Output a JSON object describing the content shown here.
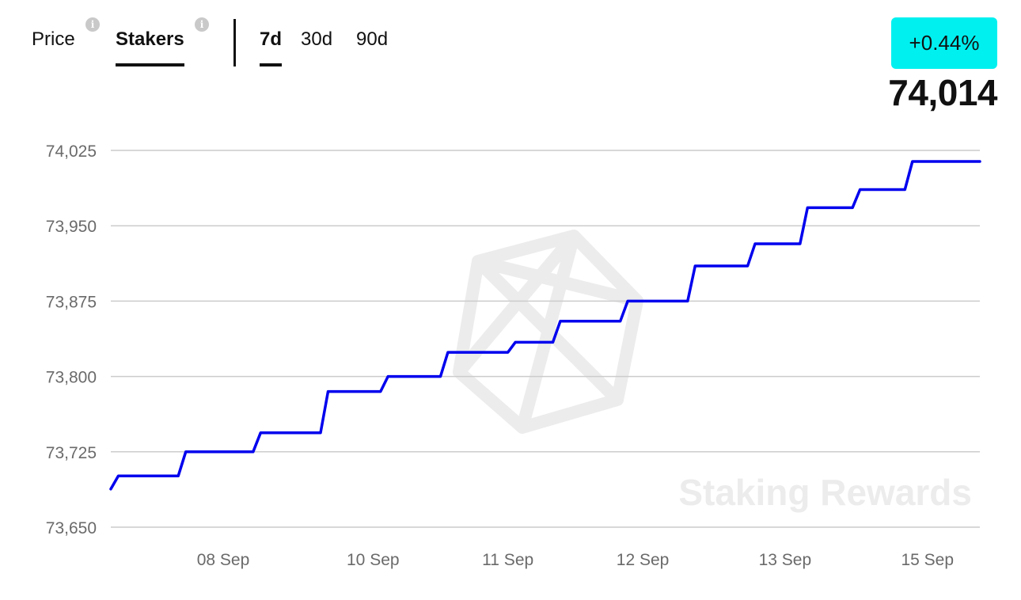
{
  "header": {
    "tabs": [
      {
        "label": "Price",
        "active": false,
        "info_icon": "info-icon"
      },
      {
        "label": "Stakers",
        "active": true,
        "info_icon": "info-icon"
      }
    ],
    "ranges": [
      {
        "label": "7d",
        "active": true
      },
      {
        "label": "30d",
        "active": false
      },
      {
        "label": "90d",
        "active": false
      }
    ],
    "change_badge": {
      "text": "+0.44%",
      "color": "#00f0f0"
    },
    "current_value": "74,014",
    "info_glyph": "i"
  },
  "watermark": {
    "text": "Staking Rewards",
    "logo": "staking-rewards-logo"
  },
  "colors": {
    "line": "#0000ee",
    "grid": "#cccccc",
    "tick": "#6a6a6a"
  },
  "chart_data": {
    "type": "line",
    "title": "",
    "xlabel": "",
    "ylabel": "",
    "ylim": [
      73650,
      74025
    ],
    "yticks": [
      "74,025",
      "73,950",
      "73,875",
      "73,800",
      "73,725",
      "73,650"
    ],
    "xticks": [
      {
        "label": "08 Sep",
        "x": 1.5
      },
      {
        "label": "10 Sep",
        "x": 3.5
      },
      {
        "label": "11 Sep",
        "x": 5.3
      },
      {
        "label": "12 Sep",
        "x": 7.1
      },
      {
        "label": "13 Sep",
        "x": 9.0
      },
      {
        "label": "15 Sep",
        "x": 10.9
      }
    ],
    "xlim": [
      0,
      11.6
    ],
    "grid": true,
    "legend": "none",
    "series": [
      {
        "steps": [
          {
            "x": 0.0,
            "y": 73688
          },
          {
            "x": 0.1,
            "y": 73701
          },
          {
            "x": 0.9,
            "y": 73701
          },
          {
            "x": 1.0,
            "y": 73725
          },
          {
            "x": 1.9,
            "y": 73725
          },
          {
            "x": 2.0,
            "y": 73744
          },
          {
            "x": 2.8,
            "y": 73744
          },
          {
            "x": 2.9,
            "y": 73785
          },
          {
            "x": 3.6,
            "y": 73785
          },
          {
            "x": 3.7,
            "y": 73800
          },
          {
            "x": 4.4,
            "y": 73800
          },
          {
            "x": 4.5,
            "y": 73824
          },
          {
            "x": 5.3,
            "y": 73824
          },
          {
            "x": 5.4,
            "y": 73834
          },
          {
            "x": 5.9,
            "y": 73834
          },
          {
            "x": 6.0,
            "y": 73855
          },
          {
            "x": 6.8,
            "y": 73855
          },
          {
            "x": 6.9,
            "y": 73875
          },
          {
            "x": 7.7,
            "y": 73875
          },
          {
            "x": 7.8,
            "y": 73910
          },
          {
            "x": 8.5,
            "y": 73910
          },
          {
            "x": 8.6,
            "y": 73932
          },
          {
            "x": 9.2,
            "y": 73932
          },
          {
            "x": 9.3,
            "y": 73968
          },
          {
            "x": 9.9,
            "y": 73968
          },
          {
            "x": 10.0,
            "y": 73986
          },
          {
            "x": 10.6,
            "y": 73986
          },
          {
            "x": 10.7,
            "y": 74014
          },
          {
            "x": 11.6,
            "y": 74014
          }
        ]
      }
    ]
  }
}
